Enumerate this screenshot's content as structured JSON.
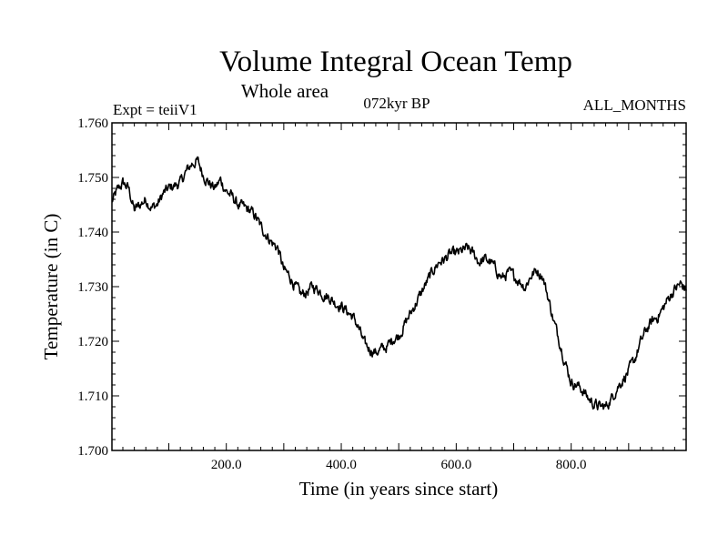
{
  "chart_data": {
    "type": "line",
    "title": "Volume Integral Ocean Temp",
    "subtitle": "Whole area",
    "annotations": {
      "left": "Expt = teiiV1",
      "center": "072kyr BP",
      "right": "ALL_MONTHS"
    },
    "xlabel": "Time (in years since start)",
    "ylabel": "Temperature (in C)",
    "xlim": [
      1,
      1000
    ],
    "ylim": [
      1.7,
      1.76
    ],
    "xticks": [
      {
        "value": 200,
        "label": "200.0"
      },
      {
        "value": 400,
        "label": "400.0"
      },
      {
        "value": 600,
        "label": "600.0"
      },
      {
        "value": 800,
        "label": "800.0"
      }
    ],
    "yticks": [
      {
        "value": 1.7,
        "label": "1.700"
      },
      {
        "value": 1.71,
        "label": "1.710"
      },
      {
        "value": 1.72,
        "label": "1.720"
      },
      {
        "value": 1.73,
        "label": "1.730"
      },
      {
        "value": 1.74,
        "label": "1.740"
      },
      {
        "value": 1.75,
        "label": "1.750"
      },
      {
        "value": 1.76,
        "label": "1.760"
      }
    ],
    "grid": false,
    "series": [
      {
        "name": "Volume integral ocean temperature",
        "color": "#000000",
        "x": [
          1,
          10,
          20,
          30,
          40,
          50,
          60,
          70,
          80,
          90,
          100,
          110,
          120,
          130,
          140,
          150,
          160,
          170,
          180,
          190,
          200,
          210,
          220,
          230,
          240,
          250,
          260,
          270,
          280,
          290,
          300,
          310,
          320,
          330,
          340,
          350,
          360,
          370,
          380,
          390,
          400,
          410,
          420,
          430,
          440,
          450,
          460,
          470,
          480,
          490,
          500,
          510,
          520,
          530,
          540,
          550,
          560,
          570,
          580,
          590,
          600,
          610,
          620,
          630,
          640,
          650,
          660,
          670,
          680,
          690,
          700,
          710,
          720,
          730,
          740,
          750,
          760,
          770,
          780,
          790,
          800,
          810,
          820,
          830,
          840,
          850,
          860,
          870,
          880,
          890,
          900,
          910,
          920,
          930,
          940,
          950,
          960,
          970,
          980,
          990,
          1000
        ],
        "values": [
          1.7455,
          1.7475,
          1.749,
          1.748,
          1.744,
          1.745,
          1.746,
          1.7445,
          1.745,
          1.747,
          1.748,
          1.7485,
          1.749,
          1.751,
          1.7525,
          1.753,
          1.7505,
          1.749,
          1.748,
          1.7495,
          1.7475,
          1.7465,
          1.745,
          1.7445,
          1.744,
          1.743,
          1.741,
          1.7395,
          1.738,
          1.737,
          1.733,
          1.732,
          1.73,
          1.7285,
          1.729,
          1.73,
          1.7295,
          1.7285,
          1.728,
          1.727,
          1.7265,
          1.7255,
          1.7245,
          1.7225,
          1.7195,
          1.7185,
          1.718,
          1.7185,
          1.719,
          1.7205,
          1.721,
          1.723,
          1.725,
          1.727,
          1.729,
          1.731,
          1.733,
          1.7345,
          1.735,
          1.736,
          1.736,
          1.7365,
          1.737,
          1.736,
          1.7345,
          1.735,
          1.7345,
          1.733,
          1.7315,
          1.7325,
          1.732,
          1.731,
          1.73,
          1.732,
          1.733,
          1.732,
          1.728,
          1.7235,
          1.72,
          1.716,
          1.7125,
          1.712,
          1.711,
          1.7095,
          1.7085,
          1.708,
          1.708,
          1.7095,
          1.7115,
          1.713,
          1.7145,
          1.7165,
          1.7195,
          1.722,
          1.7235,
          1.7245,
          1.726,
          1.728,
          1.7295,
          1.7305,
          1.7295
        ]
      }
    ]
  }
}
